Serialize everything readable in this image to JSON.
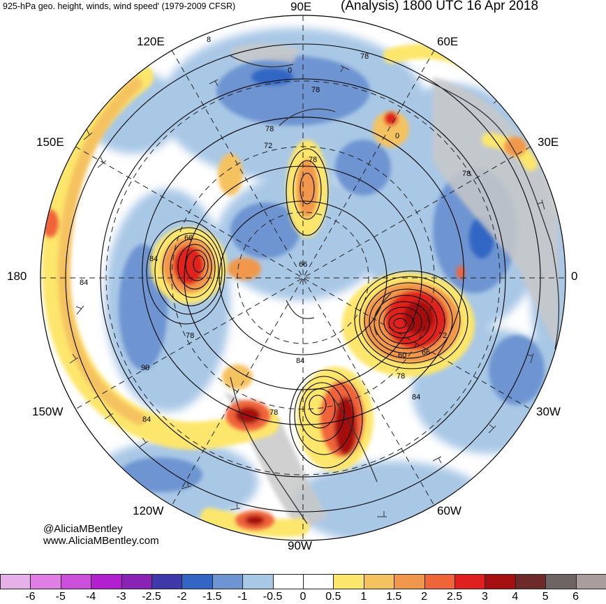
{
  "header": {
    "left_title": "925-hPa geo. height, winds, wind speed' (1979-2009 CFSR)",
    "right_title": "(Analysis) 1800 UTC 16 Apr 2018"
  },
  "longitude_labels": {
    "lon_90e": "90E",
    "lon_120e": "120E",
    "lon_60e": "60E",
    "lon_150e": "150E",
    "lon_30e": "30E",
    "lon_180": "180",
    "lon_0": "0",
    "lon_150w": "150W",
    "lon_30w": "30W",
    "lon_120w": "120W",
    "lon_60w": "60W",
    "lon_90w": "90W"
  },
  "contour_labels": [
    {
      "name": "contour-label-8",
      "text": "8"
    },
    {
      "name": "contour-label-78-a",
      "text": "78"
    },
    {
      "name": "contour-label-0-a",
      "text": "0"
    },
    {
      "name": "contour-label-78-b",
      "text": "78"
    },
    {
      "name": "contour-label-78-c",
      "text": "78"
    },
    {
      "name": "contour-label-0-b",
      "text": "0"
    },
    {
      "name": "contour-label-72",
      "text": "72"
    },
    {
      "name": "contour-label-78-d",
      "text": "78"
    },
    {
      "name": "contour-label-78-e",
      "text": "78"
    },
    {
      "name": "contour-label-66-a",
      "text": "66"
    },
    {
      "name": "contour-label-84-a",
      "text": "84"
    },
    {
      "name": "contour-label-84-b",
      "text": "84"
    },
    {
      "name": "contour-label-66-b",
      "text": "66"
    },
    {
      "name": "contour-label-78-f",
      "text": "78"
    },
    {
      "name": "contour-label-90",
      "text": "90"
    },
    {
      "name": "contour-label-84-c",
      "text": "84"
    },
    {
      "name": "contour-label-60",
      "text": "60"
    },
    {
      "name": "contour-label-66-c",
      "text": "66"
    },
    {
      "name": "contour-label-72-b",
      "text": "72"
    },
    {
      "name": "contour-label-78-g",
      "text": "78"
    },
    {
      "name": "contour-label-84-d",
      "text": "84"
    },
    {
      "name": "contour-label-84-e",
      "text": "84"
    },
    {
      "name": "contour-label-78-h",
      "text": "78"
    }
  ],
  "credits": {
    "handle": "@AliciaMBentley",
    "website": "www.AliciaMBentley.com"
  },
  "colorbar": {
    "colors": [
      "#e6b0e8",
      "#e07ee6",
      "#cc4fdb",
      "#b21fcf",
      "#8a22b6",
      "#3e38a8",
      "#3366c4",
      "#6e95d2",
      "#a9c8e6",
      "#ffffff",
      "#ffffff",
      "#fde66c",
      "#f5c260",
      "#f0974c",
      "#f0643a",
      "#e0201e",
      "#a50f10",
      "#6e2a28",
      "#6e6464",
      "#a99e9c"
    ],
    "labels": [
      "-6",
      "-5",
      "-4",
      "-3",
      "-2.5",
      "-2",
      "-1.5",
      "-1",
      "-0.5",
      "0",
      "0.5",
      "1",
      "1.5",
      "2",
      "2.5",
      "3",
      "4",
      "5",
      "6"
    ]
  }
}
